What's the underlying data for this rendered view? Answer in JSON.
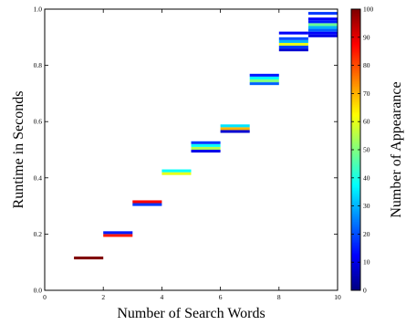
{
  "chart_data": {
    "type": "heatmap",
    "xlabel": "Number of Search Words",
    "ylabel": "Runtime in Seconds",
    "xlim": [
      0,
      10
    ],
    "ylim": [
      0.0,
      1.0
    ],
    "x_ticks": [
      0,
      2,
      4,
      6,
      8,
      10
    ],
    "x_tick_labels": [
      "0",
      "2",
      "4",
      "6",
      "8",
      "10"
    ],
    "y_ticks": [
      0.0,
      0.2,
      0.4,
      0.6,
      0.8,
      1.0
    ],
    "y_tick_labels": [
      "0.0",
      "0.2",
      "0.4",
      "0.6",
      "0.8",
      "1.0"
    ],
    "bin_width": 1,
    "bin_height": 0.01,
    "grid": false,
    "colorbar": {
      "label": "Number of Appearance",
      "range": [
        0,
        100
      ],
      "ticks": [
        0,
        10,
        20,
        30,
        40,
        50,
        60,
        70,
        80,
        90,
        100
      ],
      "tick_labels": [
        "0",
        "10",
        "20",
        "30",
        "40",
        "50",
        "60",
        "70",
        "80",
        "90",
        "100"
      ],
      "colormap": "jet"
    },
    "cells": [
      {
        "x": 1,
        "y": 0.11,
        "count": 100
      },
      {
        "x": 2,
        "y": 0.19,
        "count": 85
      },
      {
        "x": 2,
        "y": 0.2,
        "count": 15
      },
      {
        "x": 3,
        "y": 0.3,
        "count": 18
      },
      {
        "x": 3,
        "y": 0.31,
        "count": 88
      },
      {
        "x": 4,
        "y": 0.41,
        "count": 60
      },
      {
        "x": 4,
        "y": 0.42,
        "count": 38
      },
      {
        "x": 5,
        "y": 0.49,
        "count": 10
      },
      {
        "x": 5,
        "y": 0.5,
        "count": 55
      },
      {
        "x": 5,
        "y": 0.51,
        "count": 38
      },
      {
        "x": 5,
        "y": 0.52,
        "count": 18
      },
      {
        "x": 6,
        "y": 0.56,
        "count": 8
      },
      {
        "x": 6,
        "y": 0.57,
        "count": 70
      },
      {
        "x": 6,
        "y": 0.58,
        "count": 35
      },
      {
        "x": 7,
        "y": 0.73,
        "count": 22
      },
      {
        "x": 7,
        "y": 0.74,
        "count": 50
      },
      {
        "x": 7,
        "y": 0.75,
        "count": 38
      },
      {
        "x": 7,
        "y": 0.76,
        "count": 15
      },
      {
        "x": 8,
        "y": 0.85,
        "count": 8
      },
      {
        "x": 8,
        "y": 0.86,
        "count": 18
      },
      {
        "x": 8,
        "y": 0.87,
        "count": 60
      },
      {
        "x": 8,
        "y": 0.88,
        "count": 30
      },
      {
        "x": 8,
        "y": 0.89,
        "count": 20
      },
      {
        "x": 8,
        "y": 0.91,
        "count": 12
      },
      {
        "x": 9,
        "y": 0.9,
        "count": 10
      },
      {
        "x": 9,
        "y": 0.91,
        "count": 12
      },
      {
        "x": 9,
        "y": 0.92,
        "count": 22
      },
      {
        "x": 9,
        "y": 0.93,
        "count": 30
      },
      {
        "x": 9,
        "y": 0.94,
        "count": 48
      },
      {
        "x": 9,
        "y": 0.95,
        "count": 15
      },
      {
        "x": 9,
        "y": 0.96,
        "count": 12
      },
      {
        "x": 9,
        "y": 0.98,
        "count": 18
      }
    ]
  }
}
